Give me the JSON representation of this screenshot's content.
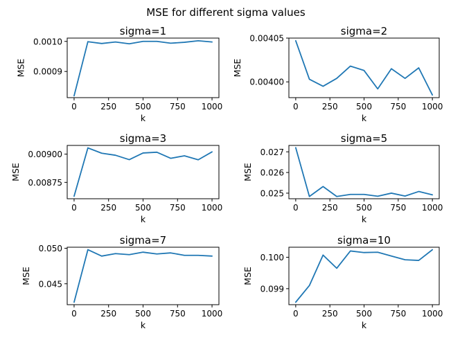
{
  "figure": {
    "suptitle": "MSE for different sigma values"
  },
  "chart_data": [
    {
      "type": "line",
      "title": "sigma=1",
      "xlabel": "k",
      "ylabel": "MSE",
      "x": [
        0,
        100,
        200,
        300,
        400,
        500,
        600,
        700,
        800,
        900,
        1000
      ],
      "series": [
        {
          "values": [
            0.000819,
            0.000999,
            0.000993,
            0.000998,
            0.000992,
            0.001,
            0.001,
            0.000994,
            0.000997,
            0.001002,
            0.000998
          ],
          "color": "#1f77b4"
        }
      ],
      "xlim": [
        -50,
        1050
      ],
      "ylim": [
        0.000813,
        0.001011
      ],
      "xticks": [
        0,
        250,
        500,
        750,
        1000
      ],
      "xticklabels": [
        "0",
        "250",
        "500",
        "750",
        "1000"
      ],
      "yticks": [
        0.0009,
        0.001
      ],
      "yticklabels": [
        "0.0009",
        "0.0010"
      ]
    },
    {
      "type": "line",
      "title": "sigma=2",
      "xlabel": "k",
      "ylabel": "MSE",
      "x": [
        0,
        100,
        200,
        300,
        400,
        500,
        600,
        700,
        800,
        900,
        1000
      ],
      "series": [
        {
          "values": [
            0.004047,
            0.004003,
            0.003995,
            0.004004,
            0.004018,
            0.004013,
            0.003992,
            0.004015,
            0.004004,
            0.004016,
            0.003985
          ],
          "color": "#1f77b4"
        }
      ],
      "xlim": [
        -50,
        1050
      ],
      "ylim": [
        0.003982,
        0.00405
      ],
      "xticks": [
        0,
        250,
        500,
        750,
        1000
      ],
      "xticklabels": [
        "0",
        "250",
        "500",
        "750",
        "1000"
      ],
      "yticks": [
        0.004,
        0.00405
      ],
      "yticklabels": [
        "0.00400",
        "0.00405"
      ]
    },
    {
      "type": "line",
      "title": "sigma=3",
      "xlabel": "k",
      "ylabel": "MSE",
      "x": [
        0,
        100,
        200,
        300,
        400,
        500,
        600,
        700,
        800,
        900,
        1000
      ],
      "series": [
        {
          "values": [
            0.008627,
            0.009055,
            0.009008,
            0.00899,
            0.008951,
            0.00901,
            0.009017,
            0.008963,
            0.008985,
            0.00895,
            0.00902
          ],
          "color": "#1f77b4"
        }
      ],
      "xlim": [
        -50,
        1050
      ],
      "ylim": [
        0.008605,
        0.009077
      ],
      "xticks": [
        0,
        250,
        500,
        750,
        1000
      ],
      "xticklabels": [
        "0",
        "250",
        "500",
        "750",
        "1000"
      ],
      "yticks": [
        0.00875,
        0.009
      ],
      "yticklabels": [
        "0.00875",
        "0.00900"
      ]
    },
    {
      "type": "line",
      "title": "sigma=5",
      "xlabel": "k",
      "ylabel": "MSE",
      "x": [
        0,
        100,
        200,
        300,
        400,
        500,
        600,
        700,
        800,
        900,
        1000
      ],
      "series": [
        {
          "values": [
            0.0272,
            0.02484,
            0.02532,
            0.02484,
            0.02494,
            0.02494,
            0.02485,
            0.025,
            0.02486,
            0.02508,
            0.02492
          ],
          "color": "#1f77b4"
        }
      ],
      "xlim": [
        -50,
        1050
      ],
      "ylim": [
        0.02473,
        0.02731
      ],
      "xticks": [
        0,
        250,
        500,
        750,
        1000
      ],
      "xticklabels": [
        "0",
        "250",
        "500",
        "750",
        "1000"
      ],
      "yticks": [
        0.025,
        0.026,
        0.027
      ],
      "yticklabels": [
        "0.025",
        "0.026",
        "0.027"
      ]
    },
    {
      "type": "line",
      "title": "sigma=7",
      "xlabel": "k",
      "ylabel": "MSE",
      "x": [
        0,
        100,
        200,
        300,
        400,
        500,
        600,
        700,
        800,
        900,
        1000
      ],
      "series": [
        {
          "values": [
            0.0424,
            0.0498,
            0.0489,
            0.04925,
            0.0491,
            0.04945,
            0.0492,
            0.04935,
            0.049,
            0.049,
            0.0489
          ],
          "color": "#1f77b4"
        }
      ],
      "xlim": [
        -50,
        1050
      ],
      "ylim": [
        0.04205,
        0.05015
      ],
      "xticks": [
        0,
        250,
        500,
        750,
        1000
      ],
      "xticklabels": [
        "0",
        "250",
        "500",
        "750",
        "1000"
      ],
      "yticks": [
        0.045,
        0.05
      ],
      "yticklabels": [
        "0.045",
        "0.050"
      ]
    },
    {
      "type": "line",
      "title": "sigma=10",
      "xlabel": "k",
      "ylabel": "MSE",
      "x": [
        0,
        100,
        200,
        300,
        400,
        500,
        600,
        700,
        800,
        900,
        1000
      ],
      "series": [
        {
          "values": [
            0.09857,
            0.0991,
            0.10007,
            0.09965,
            0.1002,
            0.10015,
            0.10016,
            0.10004,
            0.09992,
            0.0999,
            0.10024
          ],
          "color": "#1f77b4"
        }
      ],
      "xlim": [
        -50,
        1050
      ],
      "ylim": [
        0.09849,
        0.10032
      ],
      "xticks": [
        0,
        250,
        500,
        750,
        1000
      ],
      "xticklabels": [
        "0",
        "250",
        "500",
        "750",
        "1000"
      ],
      "yticks": [
        0.099,
        0.1
      ],
      "yticklabels": [
        "0.099",
        "0.100"
      ]
    }
  ]
}
